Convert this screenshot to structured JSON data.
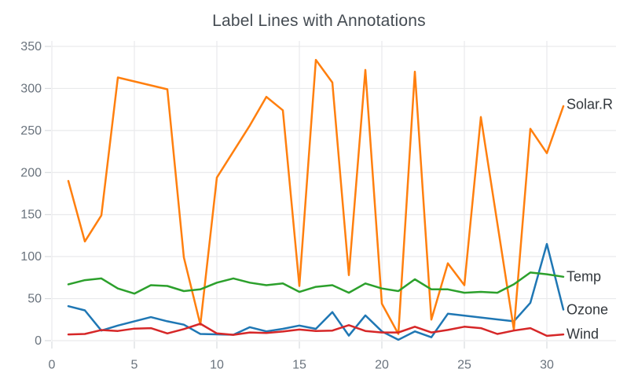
{
  "chart_data": {
    "type": "line",
    "title": "Label Lines with Annotations",
    "xlabel": "",
    "ylabel": "",
    "x": [
      1,
      2,
      3,
      4,
      5,
      6,
      7,
      8,
      9,
      10,
      11,
      12,
      13,
      14,
      15,
      16,
      17,
      18,
      19,
      20,
      21,
      22,
      23,
      24,
      25,
      26,
      27,
      28,
      29,
      30,
      31
    ],
    "series": [
      {
        "name": "Ozone",
        "color": "#1f77b4",
        "values": [
          41,
          36,
          12,
          18,
          null,
          28,
          23,
          19,
          8,
          null,
          7,
          16,
          11,
          14,
          18,
          14,
          34,
          6,
          30,
          11,
          1,
          11,
          4,
          32,
          null,
          null,
          null,
          23,
          45,
          115,
          37
        ]
      },
      {
        "name": "Solar.R",
        "color": "#ff7f0e",
        "values": [
          190,
          118,
          149,
          313,
          null,
          null,
          299,
          99,
          19,
          194,
          null,
          256,
          290,
          274,
          65,
          334,
          307,
          78,
          322,
          44,
          8,
          320,
          25,
          92,
          66,
          266,
          null,
          13,
          252,
          223,
          279
        ]
      },
      {
        "name": "Wind",
        "color": "#d62728",
        "values": [
          7.4,
          8.0,
          12.6,
          11.5,
          14.3,
          14.9,
          8.6,
          13.8,
          20.1,
          8.6,
          6.9,
          9.7,
          9.2,
          10.9,
          13.2,
          11.5,
          12.0,
          18.4,
          11.5,
          9.7,
          9.7,
          16.6,
          9.7,
          12.7,
          16.6,
          14.9,
          8.0,
          12.0,
          14.9,
          5.7,
          7.4
        ]
      },
      {
        "name": "Temp",
        "color": "#2ca02c",
        "values": [
          67,
          72,
          74,
          62,
          56,
          66,
          65,
          59,
          61,
          69,
          74,
          69,
          66,
          68,
          58,
          64,
          66,
          57,
          68,
          62,
          59,
          73,
          61,
          61,
          57,
          58,
          57,
          67,
          81,
          79,
          76
        ]
      }
    ],
    "annotations": [
      {
        "text": "Solar.R",
        "x": 31,
        "y": 279
      },
      {
        "text": "Temp",
        "x": 31,
        "y": 76
      },
      {
        "text": "Ozone",
        "x": 31,
        "y": 37
      },
      {
        "text": "Wind",
        "x": 31,
        "y": 7.4
      }
    ],
    "xticks": [
      0,
      5,
      10,
      15,
      20,
      25,
      30
    ],
    "yticks": [
      0,
      50,
      100,
      150,
      200,
      250,
      300,
      350
    ],
    "xlim": [
      0,
      34
    ],
    "ylim": [
      0,
      350
    ],
    "grid": true,
    "legend_position": "none (end-of-line annotations)",
    "na_handling": "gaps connected across missing values"
  },
  "style": {
    "background": "#ffffff",
    "grid_color": "#e9eaec",
    "tick_mark_color": "#d9dcdf",
    "tick_label_color": "#6a737d",
    "title_color": "#444b52",
    "annotation_color": "#32373c",
    "line_width": 2.5
  }
}
